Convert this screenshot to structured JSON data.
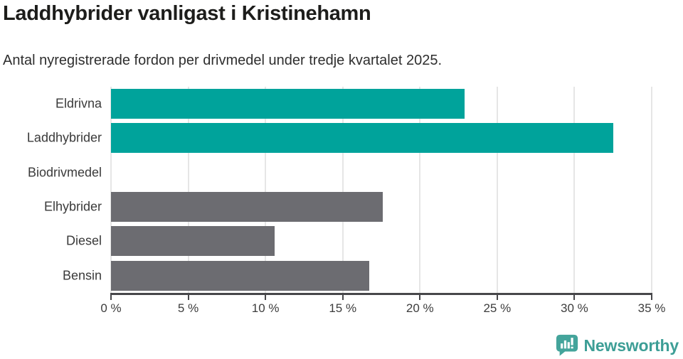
{
  "header": {
    "title": "Laddhybrider vanligast i Kristinehamn",
    "subtitle": "Antal nyregistrerade fordon per drivmedel under tredje kvartalet 2025."
  },
  "chart_data": {
    "type": "bar",
    "orientation": "horizontal",
    "title": "Laddhybrider vanligast i Kristinehamn",
    "subtitle": "Antal nyregistrerade fordon per drivmedel under tredje kvartalet 2025.",
    "categories": [
      "Eldrivna",
      "Laddhybrider",
      "Biodrivmedel",
      "Elhybrider",
      "Diesel",
      "Bensin"
    ],
    "values": [
      22.9,
      32.5,
      0,
      17.6,
      10.6,
      16.7
    ],
    "unit": "%",
    "xlabel": "",
    "ylabel": "",
    "xlim": [
      0,
      35
    ],
    "x_ticks": [
      0,
      5,
      10,
      15,
      20,
      25,
      30,
      35
    ],
    "x_tick_labels": [
      "0 %",
      "5 %",
      "10 %",
      "15 %",
      "20 %",
      "25 %",
      "30 %",
      "35 %"
    ],
    "grid": "vertical-only",
    "legend": false,
    "bar_colors": [
      "#00a39b",
      "#00a39b",
      "#00a39b",
      "#6c6c71",
      "#6c6c71",
      "#6c6c71"
    ]
  },
  "colors": {
    "highlight": "#00a39b",
    "muted_bar": "#6c6c71",
    "axis": "#47474a",
    "gridline": "#e6e6e6",
    "title_text": "#1d1d1b",
    "subtitle_text": "#2e2e2e",
    "tick_text": "#3d3d3d",
    "brand": "#3d9e96",
    "background": "#ffffff"
  },
  "footer": {
    "brand_name": "Newsworthy",
    "logo_icon": "bar-chart-speech-bubble-icon"
  }
}
